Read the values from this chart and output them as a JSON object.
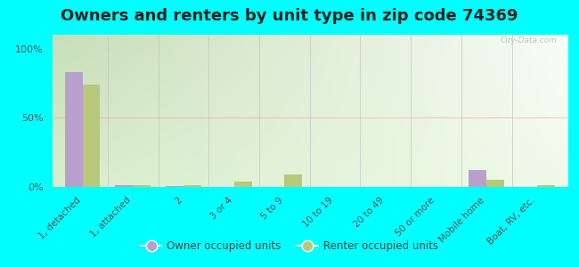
{
  "title": "Owners and renters by unit type in zip code 74369",
  "categories": [
    "1, detached",
    "1, attached",
    "2",
    "3 or 4",
    "5 to 9",
    "10 to 19",
    "20 to 49",
    "50 or more",
    "Mobile home",
    "Boat, RV, etc."
  ],
  "owner_values": [
    83,
    1.5,
    0.5,
    0,
    0,
    0,
    0,
    0,
    12,
    0
  ],
  "renter_values": [
    74,
    1.5,
    1,
    4,
    9,
    0,
    0,
    0,
    5,
    1.5
  ],
  "owner_color": "#b8a0cc",
  "renter_color": "#b8c87a",
  "background_color": "#00ffff",
  "grad_top_left": "#c8ddb8",
  "grad_top_right": "#eaf4e8",
  "grad_bottom": "#f0faea",
  "ylabel_ticks": [
    "0%",
    "50%",
    "100%"
  ],
  "yticks": [
    0,
    50,
    100
  ],
  "ylim": [
    0,
    110
  ],
  "watermark": "City-Data.com",
  "legend_owner": "Owner occupied units",
  "legend_renter": "Renter occupied units",
  "title_fontsize": 13,
  "tick_fontsize": 7.5,
  "bar_width": 0.35
}
